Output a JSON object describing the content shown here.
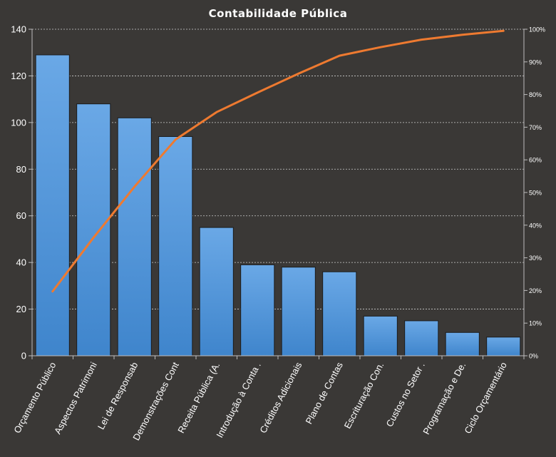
{
  "chart_data": {
    "type": "bar",
    "title": "Contabilidade  Pública",
    "categories": [
      "Orçamento Público",
      "Aspectos Patrimoni",
      "Lei de Responsab",
      "Demonstrações Cont",
      "Receita Pública (A.",
      "Introdução à Conta .",
      "Créditos Adicionais",
      "Plano de Contas",
      "Escrituração Con.",
      "Custos no Setor  .",
      "Programação e De.",
      "Ciclo Orçamentário"
    ],
    "series": [
      {
        "type": "bar",
        "axis": "left",
        "values": [
          129,
          108,
          102,
          94,
          55,
          39,
          38,
          36,
          17,
          15,
          10,
          8
        ],
        "color": "#4f95dc"
      },
      {
        "type": "line",
        "axis": "right",
        "values": [
          19.7,
          36.2,
          51.8,
          66.2,
          74.6,
          80.6,
          86.4,
          91.9,
          94.5,
          96.8,
          98.3,
          99.5
        ],
        "color": "#ee7a30"
      }
    ],
    "ylim": [
      0,
      140
    ],
    "yticks": [
      0,
      20,
      40,
      60,
      80,
      100,
      120,
      140
    ],
    "y2lim": [
      0,
      100
    ],
    "y2ticks": [
      "0%",
      "10%",
      "20%",
      "30%",
      "40%",
      "50%",
      "60%",
      "70%",
      "80%",
      "90%",
      "100%"
    ],
    "grid": true,
    "legend": "none"
  }
}
